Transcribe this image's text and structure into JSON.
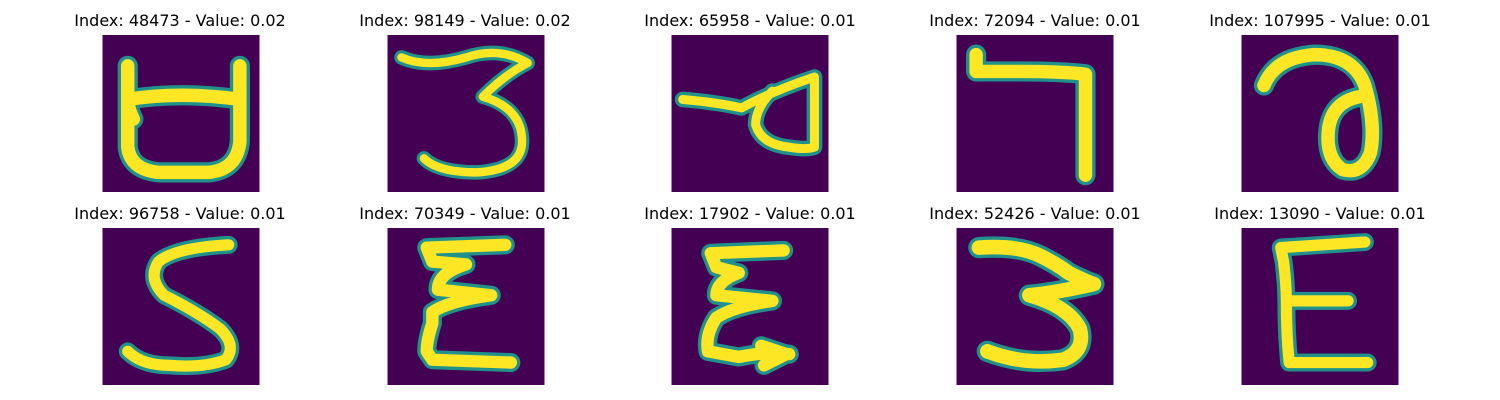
{
  "colors": {
    "background": "#440154",
    "mid": "#21918c",
    "stroke": "#fde725"
  },
  "panels": [
    {
      "title": "Index: 48473 - Value: 0.02",
      "glyph": "a_shape"
    },
    {
      "title": "Index: 98149 - Value: 0.02",
      "glyph": "three_wide"
    },
    {
      "title": "Index: 65958 - Value: 0.01",
      "glyph": "loop_left"
    },
    {
      "title": "Index: 72094 - Value: 0.01",
      "glyph": "seven"
    },
    {
      "title": "Index: 107995 - Value: 0.01",
      "glyph": "at_loop"
    },
    {
      "title": "Index: 96758 - Value: 0.01",
      "glyph": "five"
    },
    {
      "title": "Index: 70349 - Value: 0.01",
      "glyph": "e_zig"
    },
    {
      "title": "Index: 17902 - Value: 0.01",
      "glyph": "e_zig2"
    },
    {
      "title": "Index: 52426 - Value: 0.01",
      "glyph": "three_bold"
    },
    {
      "title": "Index: 13090 - Value: 0.01",
      "glyph": "e_plain"
    }
  ]
}
